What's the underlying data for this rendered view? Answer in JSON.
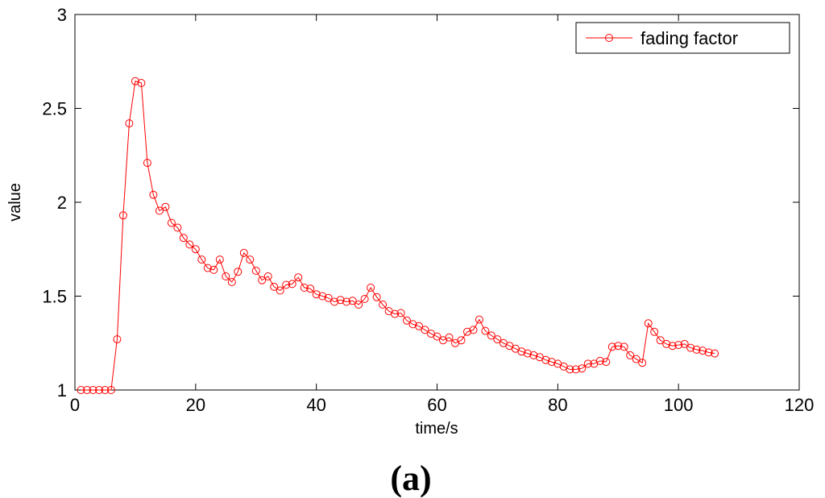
{
  "chart_data": {
    "type": "line",
    "title": "",
    "xlabel": "time/s",
    "ylabel": "value",
    "xlim": [
      0,
      120
    ],
    "ylim": [
      1,
      3
    ],
    "xticks": [
      0,
      20,
      40,
      60,
      80,
      100,
      120
    ],
    "yticks": [
      1,
      1.5,
      2,
      2.5,
      3
    ],
    "xtick_labels": [
      "0",
      "20",
      "40",
      "60",
      "80",
      "100",
      "120"
    ],
    "ytick_labels": [
      "1",
      "1.5",
      "2",
      "2.5",
      "3"
    ],
    "grid": false,
    "legend_position": "top-right",
    "caption": "(a)",
    "series": [
      {
        "name": "fading factor",
        "color": "#ff0000",
        "marker": "circle",
        "x": [
          1,
          2,
          3,
          4,
          5,
          6,
          7,
          8,
          9,
          10,
          11,
          12,
          13,
          14,
          15,
          16,
          17,
          18,
          19,
          20,
          21,
          22,
          23,
          24,
          25,
          26,
          27,
          28,
          29,
          30,
          31,
          32,
          33,
          34,
          35,
          36,
          37,
          38,
          39,
          40,
          41,
          42,
          43,
          44,
          45,
          46,
          47,
          48,
          49,
          50,
          51,
          52,
          53,
          54,
          55,
          56,
          57,
          58,
          59,
          60,
          61,
          62,
          63,
          64,
          65,
          66,
          67,
          68,
          69,
          70,
          71,
          72,
          73,
          74,
          75,
          76,
          77,
          78,
          79,
          80,
          81,
          82,
          83,
          84,
          85,
          86,
          87,
          88,
          89,
          90,
          91,
          92,
          93,
          94,
          95,
          96,
          97,
          98,
          99,
          100,
          101,
          102,
          103,
          104,
          105,
          106
        ],
        "y": [
          1.0,
          1.0,
          1.0,
          1.0,
          1.0,
          1.0,
          1.27,
          1.93,
          2.42,
          2.645,
          2.635,
          2.21,
          2.04,
          1.955,
          1.975,
          1.89,
          1.865,
          1.81,
          1.775,
          1.75,
          1.695,
          1.65,
          1.64,
          1.695,
          1.605,
          1.575,
          1.63,
          1.73,
          1.695,
          1.635,
          1.585,
          1.605,
          1.55,
          1.53,
          1.56,
          1.565,
          1.6,
          1.545,
          1.54,
          1.51,
          1.5,
          1.49,
          1.47,
          1.48,
          1.47,
          1.475,
          1.455,
          1.485,
          1.545,
          1.495,
          1.455,
          1.42,
          1.405,
          1.41,
          1.37,
          1.35,
          1.34,
          1.32,
          1.3,
          1.285,
          1.265,
          1.28,
          1.25,
          1.265,
          1.31,
          1.32,
          1.375,
          1.315,
          1.29,
          1.27,
          1.25,
          1.235,
          1.22,
          1.205,
          1.195,
          1.185,
          1.175,
          1.16,
          1.15,
          1.14,
          1.125,
          1.11,
          1.11,
          1.115,
          1.14,
          1.14,
          1.155,
          1.15,
          1.23,
          1.235,
          1.23,
          1.185,
          1.165,
          1.145,
          1.355,
          1.31,
          1.265,
          1.245,
          1.235,
          1.24,
          1.245,
          1.225,
          1.215,
          1.21,
          1.2,
          1.195
        ]
      }
    ]
  }
}
